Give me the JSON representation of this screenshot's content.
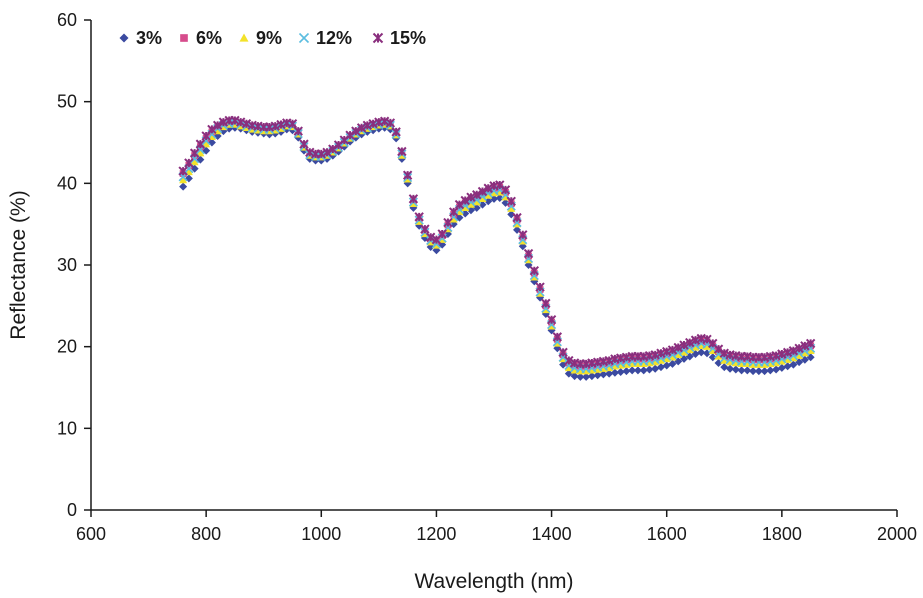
{
  "chart_data": {
    "type": "scatter",
    "xlabel": "Wavelength (nm)",
    "ylabel": "Reflectance (%)",
    "xlim": [
      600,
      2000
    ],
    "ylim": [
      0,
      60
    ],
    "x_ticks": [
      600,
      800,
      1000,
      1200,
      1400,
      1600,
      1800,
      2000
    ],
    "y_ticks": [
      0,
      10,
      20,
      30,
      40,
      50,
      60
    ],
    "grid": false,
    "legend_position": "top-left",
    "x": [
      760,
      770,
      780,
      790,
      800,
      810,
      820,
      830,
      840,
      850,
      860,
      870,
      880,
      890,
      900,
      910,
      920,
      930,
      940,
      950,
      960,
      970,
      980,
      990,
      1000,
      1010,
      1020,
      1030,
      1040,
      1050,
      1060,
      1070,
      1080,
      1090,
      1100,
      1110,
      1120,
      1130,
      1140,
      1150,
      1160,
      1170,
      1180,
      1190,
      1200,
      1210,
      1220,
      1230,
      1240,
      1250,
      1260,
      1270,
      1280,
      1290,
      1300,
      1310,
      1320,
      1330,
      1340,
      1350,
      1360,
      1370,
      1380,
      1390,
      1400,
      1410,
      1420,
      1430,
      1440,
      1450,
      1460,
      1470,
      1480,
      1490,
      1500,
      1510,
      1520,
      1530,
      1540,
      1550,
      1560,
      1570,
      1580,
      1590,
      1600,
      1610,
      1620,
      1630,
      1640,
      1650,
      1660,
      1670,
      1680,
      1690,
      1700,
      1710,
      1720,
      1730,
      1740,
      1750,
      1760,
      1770,
      1780,
      1790,
      1800,
      1810,
      1820,
      1830,
      1840,
      1850
    ],
    "series": [
      {
        "name": "3%",
        "color": "#3b4aa0",
        "marker": "diamond",
        "values": [
          39.6,
          40.6,
          41.8,
          42.9,
          44.0,
          45.0,
          45.8,
          46.4,
          46.7,
          46.8,
          46.7,
          46.5,
          46.3,
          46.2,
          46.1,
          46.0,
          46.1,
          46.3,
          46.6,
          46.5,
          45.6,
          44.0,
          43.0,
          42.8,
          42.8,
          43.0,
          43.4,
          43.9,
          44.5,
          45.1,
          45.6,
          46.0,
          46.3,
          46.5,
          46.7,
          46.8,
          46.6,
          45.5,
          43.0,
          40.0,
          37.0,
          34.8,
          33.3,
          32.2,
          31.8,
          32.5,
          33.8,
          35.0,
          35.8,
          36.3,
          36.7,
          37.0,
          37.4,
          37.8,
          38.1,
          38.2,
          37.6,
          36.2,
          34.3,
          32.3,
          30.0,
          28.0,
          26.0,
          24.0,
          22.0,
          19.8,
          17.8,
          16.7,
          16.4,
          16.3,
          16.3,
          16.4,
          16.5,
          16.6,
          16.7,
          16.8,
          16.9,
          17.0,
          17.1,
          17.1,
          17.1,
          17.2,
          17.3,
          17.5,
          17.7,
          17.9,
          18.2,
          18.5,
          18.8,
          19.1,
          19.3,
          19.2,
          18.7,
          18.0,
          17.5,
          17.3,
          17.2,
          17.1,
          17.1,
          17.0,
          17.0,
          17.0,
          17.1,
          17.2,
          17.4,
          17.6,
          17.8,
          18.1,
          18.4,
          18.7
        ]
      },
      {
        "name": "6%",
        "color": "#d64c8c",
        "marker": "square",
        "values": [
          41.2,
          42.2,
          43.4,
          44.5,
          45.5,
          46.3,
          46.9,
          47.3,
          47.5,
          47.5,
          47.3,
          47.1,
          46.9,
          46.8,
          46.7,
          46.7,
          46.8,
          47.0,
          47.2,
          47.1,
          46.2,
          44.6,
          43.6,
          43.4,
          43.4,
          43.6,
          44.0,
          44.5,
          45.1,
          45.7,
          46.2,
          46.6,
          46.9,
          47.1,
          47.3,
          47.4,
          47.2,
          46.1,
          43.7,
          40.8,
          37.9,
          35.7,
          34.2,
          33.2,
          32.9,
          33.6,
          34.9,
          36.2,
          37.1,
          37.6,
          38.0,
          38.3,
          38.7,
          39.1,
          39.4,
          39.5,
          38.9,
          37.5,
          35.5,
          33.4,
          31.1,
          29.0,
          27.0,
          25.0,
          23.0,
          20.9,
          19.0,
          18.0,
          17.7,
          17.6,
          17.6,
          17.7,
          17.8,
          17.9,
          18.0,
          18.2,
          18.3,
          18.4,
          18.5,
          18.5,
          18.5,
          18.6,
          18.7,
          18.9,
          19.1,
          19.3,
          19.6,
          19.9,
          20.2,
          20.5,
          20.7,
          20.6,
          20.1,
          19.4,
          18.9,
          18.7,
          18.6,
          18.5,
          18.5,
          18.4,
          18.4,
          18.4,
          18.5,
          18.6,
          18.8,
          19.0,
          19.2,
          19.5,
          19.8,
          20.1
        ]
      },
      {
        "name": "9%",
        "color": "#f3e22a",
        "marker": "triangle",
        "values": [
          40.4,
          41.4,
          42.6,
          43.7,
          44.8,
          45.7,
          46.4,
          46.9,
          47.2,
          47.2,
          47.0,
          46.8,
          46.6,
          46.5,
          46.4,
          46.4,
          46.5,
          46.7,
          47.0,
          46.9,
          46.0,
          44.4,
          43.4,
          43.2,
          43.2,
          43.4,
          43.8,
          44.3,
          44.9,
          45.5,
          46.0,
          46.4,
          46.7,
          46.9,
          47.1,
          47.2,
          47.0,
          45.9,
          43.4,
          40.5,
          37.5,
          35.3,
          33.8,
          32.8,
          32.4,
          33.1,
          34.4,
          35.6,
          36.5,
          37.0,
          37.4,
          37.7,
          38.1,
          38.5,
          38.8,
          38.9,
          38.3,
          36.9,
          35.0,
          32.9,
          30.6,
          28.5,
          26.5,
          24.5,
          22.5,
          20.4,
          18.5,
          17.4,
          17.1,
          17.0,
          17.0,
          17.1,
          17.2,
          17.3,
          17.4,
          17.6,
          17.7,
          17.8,
          17.9,
          17.9,
          17.9,
          18.0,
          18.1,
          18.3,
          18.5,
          18.7,
          19.0,
          19.3,
          19.6,
          19.9,
          20.1,
          20.0,
          19.5,
          18.8,
          18.3,
          18.1,
          18.0,
          17.9,
          17.9,
          17.8,
          17.8,
          17.8,
          17.9,
          18.0,
          18.2,
          18.4,
          18.6,
          18.9,
          19.2,
          19.5
        ]
      },
      {
        "name": "12%",
        "color": "#5bbde0",
        "marker": "x",
        "values": [
          40.8,
          41.8,
          43.0,
          44.1,
          45.2,
          46.0,
          46.7,
          47.1,
          47.3,
          47.4,
          47.2,
          47.0,
          46.8,
          46.7,
          46.6,
          46.6,
          46.7,
          46.9,
          47.1,
          47.0,
          46.1,
          44.5,
          43.5,
          43.3,
          43.3,
          43.5,
          43.9,
          44.4,
          45.0,
          45.6,
          46.1,
          46.5,
          46.8,
          47.0,
          47.2,
          47.3,
          47.1,
          46.0,
          43.6,
          40.7,
          37.7,
          35.5,
          34.0,
          33.0,
          32.6,
          33.3,
          34.6,
          35.9,
          36.8,
          37.3,
          37.7,
          38.0,
          38.4,
          38.8,
          39.1,
          39.2,
          38.6,
          37.2,
          35.2,
          33.1,
          30.8,
          28.7,
          26.7,
          24.7,
          22.7,
          20.6,
          18.7,
          17.7,
          17.4,
          17.3,
          17.3,
          17.4,
          17.5,
          17.6,
          17.7,
          17.9,
          18.0,
          18.1,
          18.2,
          18.2,
          18.2,
          18.3,
          18.4,
          18.6,
          18.8,
          19.0,
          19.3,
          19.6,
          19.9,
          20.2,
          20.4,
          20.3,
          19.8,
          19.1,
          18.6,
          18.4,
          18.3,
          18.2,
          18.2,
          18.1,
          18.1,
          18.1,
          18.2,
          18.3,
          18.5,
          18.7,
          18.9,
          19.2,
          19.5,
          19.8
        ]
      },
      {
        "name": "15%",
        "color": "#8a2f7e",
        "marker": "star",
        "values": [
          41.5,
          42.5,
          43.7,
          44.8,
          45.8,
          46.6,
          47.1,
          47.5,
          47.7,
          47.7,
          47.5,
          47.3,
          47.1,
          47.0,
          46.9,
          46.9,
          47.0,
          47.2,
          47.4,
          47.3,
          46.4,
          44.8,
          43.8,
          43.6,
          43.6,
          43.8,
          44.2,
          44.7,
          45.3,
          45.9,
          46.4,
          46.8,
          47.1,
          47.3,
          47.5,
          47.6,
          47.4,
          46.3,
          43.9,
          41.0,
          38.1,
          35.9,
          34.4,
          33.4,
          33.1,
          33.8,
          35.2,
          36.5,
          37.4,
          37.9,
          38.3,
          38.6,
          39.0,
          39.4,
          39.7,
          39.8,
          39.2,
          37.8,
          35.8,
          33.7,
          31.4,
          29.3,
          27.3,
          25.3,
          23.3,
          21.2,
          19.3,
          18.3,
          18.0,
          17.9,
          17.9,
          18.0,
          18.1,
          18.2,
          18.3,
          18.5,
          18.6,
          18.7,
          18.8,
          18.8,
          18.8,
          18.9,
          19.0,
          19.2,
          19.4,
          19.6,
          19.9,
          20.2,
          20.5,
          20.8,
          21.0,
          20.9,
          20.4,
          19.7,
          19.2,
          19.0,
          18.9,
          18.8,
          18.8,
          18.7,
          18.7,
          18.7,
          18.8,
          18.9,
          19.1,
          19.3,
          19.5,
          19.8,
          20.1,
          20.4
        ]
      }
    ]
  }
}
